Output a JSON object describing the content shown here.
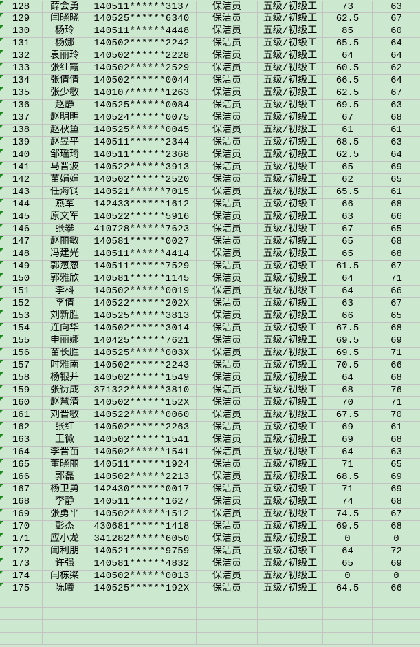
{
  "colors": {
    "background": "#cce8cf",
    "grid": "#c3c3c3",
    "number-as-text-marker": "#1a8a1a"
  },
  "rows": [
    [
      "128",
      "薛会勇",
      "140511******3137",
      "保洁员",
      "五级/初级工",
      "73",
      "63"
    ],
    [
      "129",
      "闫晓晓",
      "140525******6340",
      "保洁员",
      "五级/初级工",
      "62.5",
      "67"
    ],
    [
      "130",
      "杨玲",
      "140511******4448",
      "保洁员",
      "五级/初级工",
      "85",
      "60"
    ],
    [
      "131",
      "杨娜",
      "140502******2242",
      "保洁员",
      "五级/初级工",
      "65.5",
      "64"
    ],
    [
      "132",
      "袁丽玲",
      "140502******2228",
      "保洁员",
      "五级/初级工",
      "64",
      "64"
    ],
    [
      "133",
      "张红霞",
      "140502******2529",
      "保洁员",
      "五级/初级工",
      "60.5",
      "62"
    ],
    [
      "134",
      "张倩倩",
      "140502******0044",
      "保洁员",
      "五级/初级工",
      "66.5",
      "64"
    ],
    [
      "135",
      "张少敏",
      "140107******1263",
      "保洁员",
      "五级/初级工",
      "62.5",
      "67"
    ],
    [
      "136",
      "赵静",
      "140525******0084",
      "保洁员",
      "五级/初级工",
      "69.5",
      "63"
    ],
    [
      "137",
      "赵明明",
      "140524******0075",
      "保洁员",
      "五级/初级工",
      "67",
      "68"
    ],
    [
      "138",
      "赵秋鱼",
      "140525******0045",
      "保洁员",
      "五级/初级工",
      "61",
      "61"
    ],
    [
      "139",
      "赵昱平",
      "140511******2344",
      "保洁员",
      "五级/初级工",
      "68.5",
      "63"
    ],
    [
      "140",
      "邹瑶琦",
      "140511******2368",
      "保洁员",
      "五级/初级工",
      "62.5",
      "64"
    ],
    [
      "141",
      "马晋波",
      "140522******3913",
      "保洁员",
      "五级/初级工",
      "65",
      "69"
    ],
    [
      "142",
      "苗娟娟",
      "140502******2520",
      "保洁员",
      "五级/初级工",
      "62",
      "65"
    ],
    [
      "143",
      "任海钢",
      "140521******7015",
      "保洁员",
      "五级/初级工",
      "65.5",
      "61"
    ],
    [
      "144",
      "燕军",
      "142433******1612",
      "保洁员",
      "五级/初级工",
      "66",
      "68"
    ],
    [
      "145",
      "原文军",
      "140522******5916",
      "保洁员",
      "五级/初级工",
      "63",
      "66"
    ],
    [
      "146",
      "张攀",
      "410728******7623",
      "保洁员",
      "五级/初级工",
      "67",
      "65"
    ],
    [
      "147",
      "赵丽敏",
      "140581******0027",
      "保洁员",
      "五级/初级工",
      "65",
      "68"
    ],
    [
      "148",
      "冯建光",
      "140511******4414",
      "保洁员",
      "五级/初级工",
      "65",
      "68"
    ],
    [
      "149",
      "郭葱葱",
      "140511******7529",
      "保洁员",
      "五级/初级工",
      "61.5",
      "67"
    ],
    [
      "150",
      "郭雅欣",
      "140581******1145",
      "保洁员",
      "五级/初级工",
      "64",
      "71"
    ],
    [
      "151",
      "李科",
      "140502******0019",
      "保洁员",
      "五级/初级工",
      "64",
      "66"
    ],
    [
      "152",
      "李倩",
      "140522******202X",
      "保洁员",
      "五级/初级工",
      "63",
      "67"
    ],
    [
      "153",
      "刘新胜",
      "140525******3813",
      "保洁员",
      "五级/初级工",
      "66",
      "65"
    ],
    [
      "154",
      "连向华",
      "140502******3014",
      "保洁员",
      "五级/初级工",
      "67.5",
      "68"
    ],
    [
      "155",
      "申丽娜",
      "140425******7621",
      "保洁员",
      "五级/初级工",
      "69.5",
      "69"
    ],
    [
      "156",
      "苗长胜",
      "140525******003X",
      "保洁员",
      "五级/初级工",
      "69.5",
      "71"
    ],
    [
      "157",
      "时雅南",
      "140502******2243",
      "保洁员",
      "五级/初级工",
      "70.5",
      "66"
    ],
    [
      "158",
      "杨银并",
      "140502******1549",
      "保洁员",
      "五级/初级工",
      "64",
      "68"
    ],
    [
      "159",
      "张衍成",
      "371322******3810",
      "保洁员",
      "五级/初级工",
      "68",
      "76"
    ],
    [
      "160",
      "赵慧清",
      "140502******152X",
      "保洁员",
      "五级/初级工",
      "70",
      "71"
    ],
    [
      "161",
      "刘晋敏",
      "140522******0060",
      "保洁员",
      "五级/初级工",
      "67.5",
      "70"
    ],
    [
      "162",
      "张红",
      "140502******2263",
      "保洁员",
      "五级/初级工",
      "69",
      "61"
    ],
    [
      "163",
      "王微",
      "140502******1541",
      "保洁员",
      "五级/初级工",
      "69",
      "68"
    ],
    [
      "164",
      "李晋苗",
      "140502******1541",
      "保洁员",
      "五级/初级工",
      "64",
      "63"
    ],
    [
      "165",
      "董晓丽",
      "140511******1924",
      "保洁员",
      "五级/初级工",
      "71",
      "65"
    ],
    [
      "166",
      "郭磊",
      "140502******2213",
      "保洁员",
      "五级/初级工",
      "68.5",
      "69"
    ],
    [
      "167",
      "杨卫勇",
      "142430******0017",
      "保洁员",
      "五级/初级工",
      "71",
      "69"
    ],
    [
      "168",
      "李静",
      "140511******1627",
      "保洁员",
      "五级/初级工",
      "74",
      "68"
    ],
    [
      "169",
      "张勇平",
      "140502******1512",
      "保洁员",
      "五级/初级工",
      "74.5",
      "67"
    ],
    [
      "170",
      "彭杰",
      "430681******1418",
      "保洁员",
      "五级/初级工",
      "69.5",
      "68"
    ],
    [
      "171",
      "应小龙",
      "341282******6050",
      "保洁员",
      "五级/初级工",
      "0",
      "0"
    ],
    [
      "172",
      "闫利朋",
      "140521******9759",
      "保洁员",
      "五级/初级工",
      "64",
      "72"
    ],
    [
      "173",
      "许强",
      "140581******4832",
      "保洁员",
      "五级/初级工",
      "65",
      "69"
    ],
    [
      "174",
      "闫栋梁",
      "140502******0013",
      "保洁员",
      "五级/初级工",
      "0",
      "0"
    ],
    [
      "175",
      "陈曦",
      "140525******192X",
      "保洁员",
      "五级/初级工",
      "64.5",
      "66"
    ]
  ]
}
